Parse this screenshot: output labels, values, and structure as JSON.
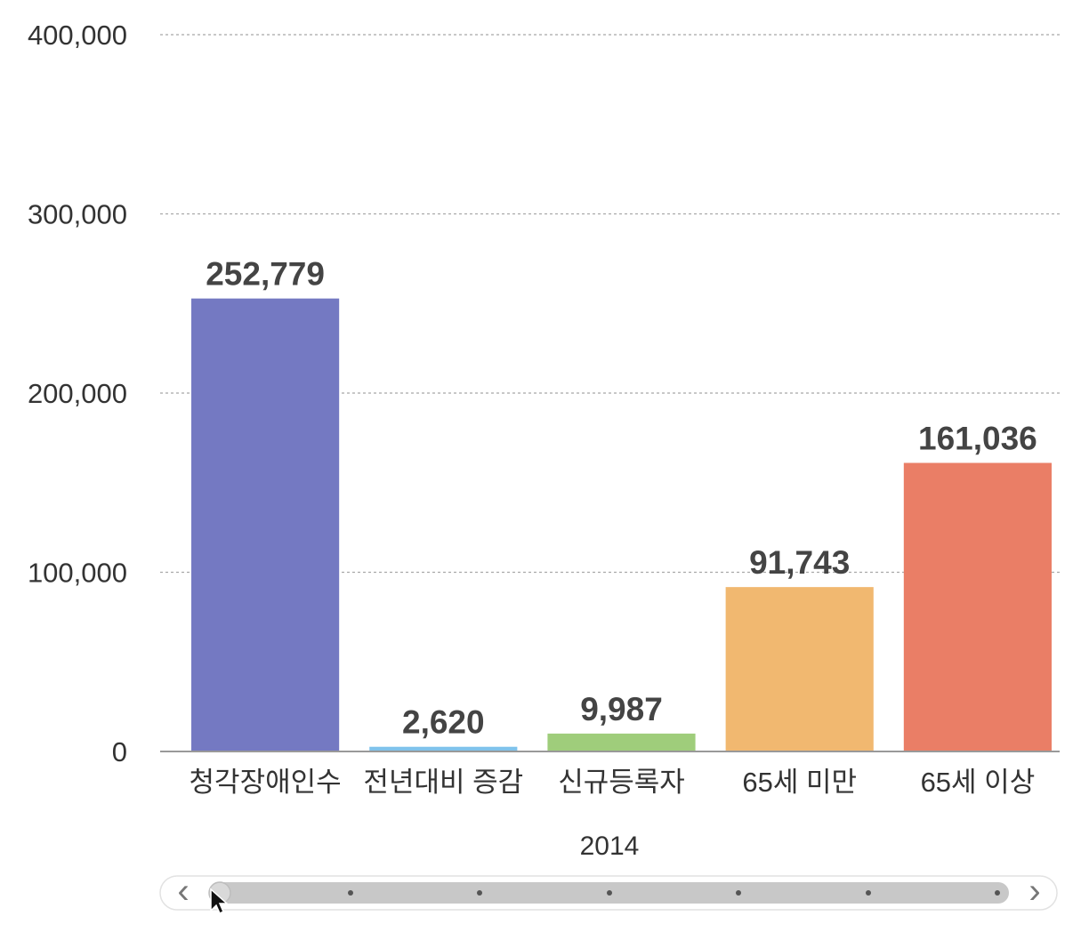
{
  "chart_data": {
    "type": "bar",
    "title": "",
    "xlabel": "2014",
    "ylabel": "",
    "ylim": [
      0,
      400000
    ],
    "yticks": [
      0,
      100000,
      200000,
      300000,
      400000
    ],
    "ytick_labels": [
      "0",
      "100,000",
      "200,000",
      "300,000",
      "400,000"
    ],
    "grid": true,
    "legend": "none",
    "categories": [
      "청각장애인수",
      "전년대비 증감",
      "신규등록자",
      "65세 미만",
      "65세 이상"
    ],
    "values": [
      252779,
      2620,
      9987,
      91743,
      161036
    ],
    "value_labels": [
      "252,779",
      "2,620",
      "9,987",
      "91,743",
      "161,036"
    ],
    "colors": [
      "#7479c2",
      "#7fc3ec",
      "#9fcd7b",
      "#f1b870",
      "#ea7e66"
    ]
  },
  "scrollbar": {
    "left_arrow": "‹",
    "right_arrow": "›",
    "thumb_color": "#c8c8c8",
    "position": 0
  }
}
